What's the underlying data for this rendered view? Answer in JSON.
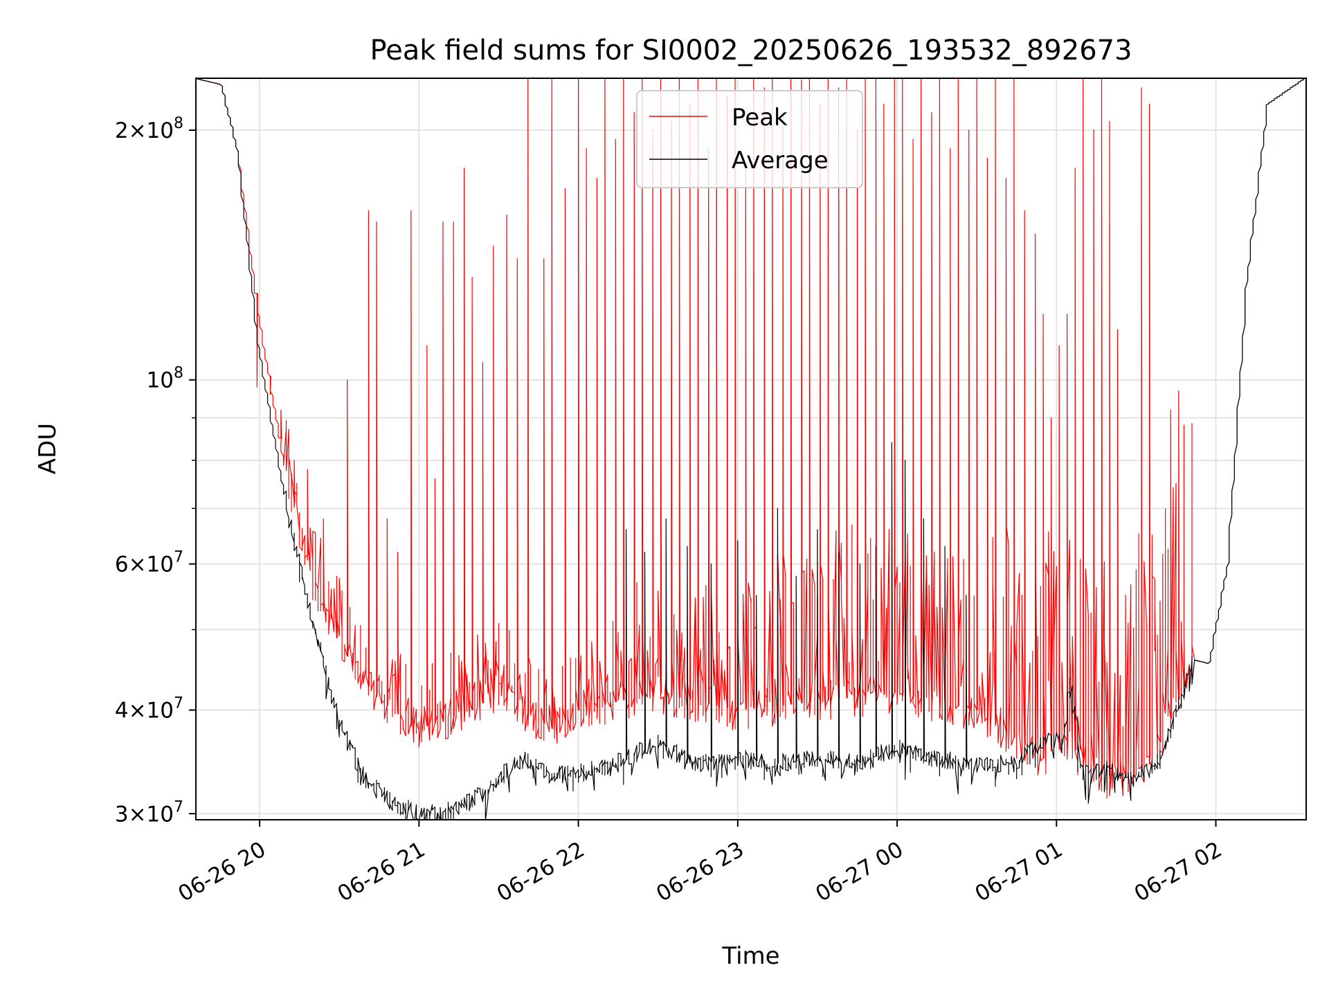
{
  "chart_data": {
    "type": "line",
    "title": "Peak field sums for SI0002_20250626_193532_892673",
    "xlabel": "Time",
    "ylabel": "ADU",
    "yscale": "log",
    "xlim": [
      "2025-06-26 19:36",
      "2025-06-27 02:34"
    ],
    "ylim": [
      29500000,
      231000000
    ],
    "grid": true,
    "legend_position": "upper center",
    "x_ticks": [
      {
        "value": "2025-06-26 20:00",
        "label": "06-26 20"
      },
      {
        "value": "2025-06-26 21:00",
        "label": "06-26 21"
      },
      {
        "value": "2025-06-26 22:00",
        "label": "06-26 22"
      },
      {
        "value": "2025-06-26 23:00",
        "label": "06-26 23"
      },
      {
        "value": "2025-06-27 00:00",
        "label": "06-27 00"
      },
      {
        "value": "2025-06-27 01:00",
        "label": "06-27 01"
      },
      {
        "value": "2025-06-27 02:00",
        "label": "06-27 02"
      }
    ],
    "y_ticks": [
      {
        "value": 30000000,
        "mant": "3",
        "exp": "7"
      },
      {
        "value": 40000000,
        "mant": "4",
        "exp": "7"
      },
      {
        "value": 60000000,
        "mant": "6",
        "exp": "7"
      },
      {
        "value": 100000000,
        "mant": "",
        "exp": "8"
      },
      {
        "value": 200000000,
        "mant": "2",
        "exp": "8"
      }
    ],
    "y_minor_ticks": [
      50000000,
      70000000,
      80000000,
      90000000
    ],
    "series": [
      {
        "name": "Peak",
        "color": "#ff0000",
        "line_width": 1,
        "baseline_x": [
          "2025-06-26 19:36",
          "2025-06-26 19:46",
          "2025-06-26 19:52",
          "2025-06-26 20:00",
          "2025-06-26 20:10",
          "2025-06-26 20:20",
          "2025-06-26 20:30",
          "2025-06-26 20:40",
          "2025-06-26 20:50",
          "2025-06-26 21:00",
          "2025-06-26 21:10",
          "2025-06-26 21:20",
          "2025-06-26 21:30",
          "2025-06-26 21:40",
          "2025-06-26 21:50",
          "2025-06-26 22:00",
          "2025-06-26 22:30",
          "2025-06-26 23:00",
          "2025-06-26 23:30",
          "2025-06-27 00:00",
          "2025-06-27 00:30",
          "2025-06-27 00:55",
          "2025-06-27 01:03",
          "2025-06-27 01:10",
          "2025-06-27 01:20",
          "2025-06-27 01:30",
          "2025-06-27 01:40",
          "2025-06-27 01:52",
          "2025-06-27 01:58",
          "2025-06-27 02:05",
          "2025-06-27 02:12",
          "2025-06-27 02:20",
          "2025-06-27 02:34"
        ],
        "baseline_y": [
          231000000,
          227000000,
          190000000,
          120000000,
          78000000,
          58000000,
          48000000,
          43000000,
          40000000,
          38000000,
          39000000,
          40000000,
          42000000,
          40000000,
          38000000,
          40000000,
          42000000,
          40000000,
          41000000,
          42000000,
          40000000,
          35000000,
          37000000,
          35000000,
          33000000,
          33500000,
          37000000,
          46000000,
          45500000,
          60000000,
          130000000,
          215000000,
          231000000
        ],
        "spikes": [
          [
            "2025-06-26 19:59",
            98000000
          ],
          [
            "2025-06-26 20:04",
            96000000
          ],
          [
            "2025-06-26 20:08",
            92000000
          ],
          [
            "2025-06-26 20:13",
            80000000
          ],
          [
            "2025-06-26 20:18",
            78000000
          ],
          [
            "2025-06-26 20:24",
            68000000
          ],
          [
            "2025-06-26 20:29",
            58000000
          ],
          [
            "2025-06-26 20:33",
            100000000
          ],
          [
            "2025-06-26 20:41",
            160000000
          ],
          [
            "2025-06-26 20:44",
            155000000
          ],
          [
            "2025-06-26 20:48",
            68000000
          ],
          [
            "2025-06-26 20:52",
            62000000
          ],
          [
            "2025-06-26 20:57",
            160000000
          ],
          [
            "2025-06-26 21:03",
            110000000
          ],
          [
            "2025-06-26 21:06",
            76000000
          ],
          [
            "2025-06-26 21:09",
            155000000
          ],
          [
            "2025-06-26 21:13",
            155000000
          ],
          [
            "2025-06-26 21:17",
            180000000
          ],
          [
            "2025-06-26 21:20",
            133000000
          ],
          [
            "2025-06-26 21:24",
            105000000
          ],
          [
            "2025-06-26 21:28",
            145000000
          ],
          [
            "2025-06-26 21:33",
            158000000
          ],
          [
            "2025-06-26 21:37",
            140000000
          ],
          [
            "2025-06-26 21:41",
            231000000
          ],
          [
            "2025-06-26 21:47",
            140000000
          ],
          [
            "2025-06-26 21:50",
            231000000
          ],
          [
            "2025-06-26 21:55",
            170000000
          ],
          [
            "2025-06-26 22:00",
            231000000
          ],
          [
            "2025-06-26 22:03",
            190000000
          ],
          [
            "2025-06-26 22:07",
            175000000
          ],
          [
            "2025-06-26 22:10",
            231000000
          ],
          [
            "2025-06-26 22:14",
            195000000
          ],
          [
            "2025-06-26 22:17",
            231000000
          ],
          [
            "2025-06-26 22:21",
            210000000
          ],
          [
            "2025-06-26 22:24",
            231000000
          ],
          [
            "2025-06-26 22:28",
            200000000
          ],
          [
            "2025-06-26 22:31",
            231000000
          ],
          [
            "2025-06-26 22:35",
            205000000
          ],
          [
            "2025-06-26 22:38",
            231000000
          ],
          [
            "2025-06-26 22:42",
            215000000
          ],
          [
            "2025-06-26 22:45",
            231000000
          ],
          [
            "2025-06-26 22:49",
            190000000
          ],
          [
            "2025-06-26 22:52",
            231000000
          ],
          [
            "2025-06-26 22:56",
            220000000
          ],
          [
            "2025-06-26 22:59",
            231000000
          ],
          [
            "2025-06-26 23:03",
            180000000
          ],
          [
            "2025-06-26 23:06",
            231000000
          ],
          [
            "2025-06-26 23:10",
            225000000
          ],
          [
            "2025-06-26 23:13",
            231000000
          ],
          [
            "2025-06-26 23:17",
            210000000
          ],
          [
            "2025-06-26 23:20",
            231000000
          ],
          [
            "2025-06-26 23:24",
            230000000
          ],
          [
            "2025-06-26 23:27",
            231000000
          ],
          [
            "2025-06-26 23:31",
            215000000
          ],
          [
            "2025-06-26 23:34",
            231000000
          ],
          [
            "2025-06-26 23:38",
            225000000
          ],
          [
            "2025-06-26 23:41",
            231000000
          ],
          [
            "2025-06-26 23:45",
            200000000
          ],
          [
            "2025-06-26 23:48",
            231000000
          ],
          [
            "2025-06-26 23:52",
            231000000
          ],
          [
            "2025-06-26 23:55",
            215000000
          ],
          [
            "2025-06-26 23:59",
            231000000
          ],
          [
            "2025-06-27 00:02",
            231000000
          ],
          [
            "2025-06-27 00:06",
            195000000
          ],
          [
            "2025-06-27 00:09",
            231000000
          ],
          [
            "2025-06-27 00:13",
            210000000
          ],
          [
            "2025-06-27 00:16",
            231000000
          ],
          [
            "2025-06-27 00:20",
            190000000
          ],
          [
            "2025-06-27 00:23",
            231000000
          ],
          [
            "2025-06-27 00:27",
            200000000
          ],
          [
            "2025-06-27 00:30",
            231000000
          ],
          [
            "2025-06-27 00:34",
            185000000
          ],
          [
            "2025-06-27 00:37",
            231000000
          ],
          [
            "2025-06-27 00:41",
            175000000
          ],
          [
            "2025-06-27 00:44",
            231000000
          ],
          [
            "2025-06-27 00:48",
            160000000
          ],
          [
            "2025-06-27 00:52",
            150000000
          ],
          [
            "2025-06-27 00:55",
            120000000
          ],
          [
            "2025-06-27 00:58",
            90000000
          ],
          [
            "2025-06-27 01:01",
            110000000
          ],
          [
            "2025-06-27 01:04",
            120000000
          ],
          [
            "2025-06-27 01:07",
            180000000
          ],
          [
            "2025-06-27 01:10",
            231000000
          ],
          [
            "2025-06-27 01:14",
            200000000
          ],
          [
            "2025-06-27 01:17",
            231000000
          ],
          [
            "2025-06-27 01:20",
            205000000
          ],
          [
            "2025-06-27 01:23",
            115000000
          ],
          [
            "2025-06-27 01:26",
            55000000
          ],
          [
            "2025-06-27 01:29",
            44000000
          ],
          [
            "2025-06-27 01:32",
            225000000
          ],
          [
            "2025-06-27 01:35",
            215000000
          ],
          [
            "2025-06-27 01:39",
            40000000
          ],
          [
            "2025-06-27 01:43",
            92000000
          ],
          [
            "2025-06-27 01:46",
            97000000
          ],
          [
            "2025-06-27 01:48",
            49000000
          ]
        ]
      },
      {
        "name": "Average",
        "color": "#000000",
        "line_width": 1,
        "baseline_x": [
          "2025-06-26 19:36",
          "2025-06-26 19:46",
          "2025-06-26 19:52",
          "2025-06-26 20:00",
          "2025-06-26 20:10",
          "2025-06-26 20:20",
          "2025-06-26 20:30",
          "2025-06-26 20:40",
          "2025-06-26 20:50",
          "2025-06-26 21:00",
          "2025-06-26 21:10",
          "2025-06-26 21:20",
          "2025-06-26 21:30",
          "2025-06-26 21:40",
          "2025-06-26 21:50",
          "2025-06-26 22:00",
          "2025-06-26 22:15",
          "2025-06-26 22:30",
          "2025-06-26 22:45",
          "2025-06-26 23:00",
          "2025-06-26 23:15",
          "2025-06-26 23:30",
          "2025-06-26 23:45",
          "2025-06-27 00:00",
          "2025-06-27 00:15",
          "2025-06-27 00:30",
          "2025-06-27 00:45",
          "2025-06-27 00:55",
          "2025-06-27 01:03",
          "2025-06-27 01:06",
          "2025-06-27 01:10",
          "2025-06-27 01:20",
          "2025-06-27 01:30",
          "2025-06-27 01:40",
          "2025-06-27 01:52",
          "2025-06-27 01:58",
          "2025-06-27 02:05",
          "2025-06-27 02:12",
          "2025-06-27 02:20",
          "2025-06-27 02:34"
        ],
        "baseline_y": [
          231000000,
          227000000,
          190000000,
          110000000,
          72000000,
          52000000,
          39000000,
          33000000,
          31000000,
          30000000,
          30200000,
          31000000,
          33000000,
          35000000,
          33500000,
          33500000,
          34500000,
          36500000,
          34500000,
          35000000,
          34500000,
          35000000,
          34500000,
          36000000,
          35000000,
          34500000,
          34500000,
          36500000,
          37000000,
          44000000,
          33500000,
          34000000,
          33000000,
          35000000,
          46000000,
          45500000,
          60000000,
          130000000,
          215000000,
          231000000
        ],
        "spikes": [
          [
            "2025-06-26 22:18",
            66000000
          ],
          [
            "2025-06-26 22:25",
            62000000
          ],
          [
            "2025-06-26 22:33",
            68000000
          ],
          [
            "2025-06-26 22:41",
            63000000
          ],
          [
            "2025-06-26 22:50",
            60000000
          ],
          [
            "2025-06-26 23:00",
            64000000
          ],
          [
            "2025-06-26 23:07",
            55000000
          ],
          [
            "2025-06-26 23:15",
            70000000
          ],
          [
            "2025-06-26 23:22",
            58000000
          ],
          [
            "2025-06-26 23:30",
            66000000
          ],
          [
            "2025-06-26 23:38",
            62000000
          ],
          [
            "2025-06-26 23:46",
            60000000
          ],
          [
            "2025-06-26 23:52",
            63000000
          ],
          [
            "2025-06-26 23:58",
            84000000
          ],
          [
            "2025-06-27 00:03",
            80000000
          ],
          [
            "2025-06-27 00:10",
            68000000
          ],
          [
            "2025-06-27 00:18",
            63000000
          ],
          [
            "2025-06-27 00:26",
            55000000
          ]
        ]
      }
    ]
  }
}
